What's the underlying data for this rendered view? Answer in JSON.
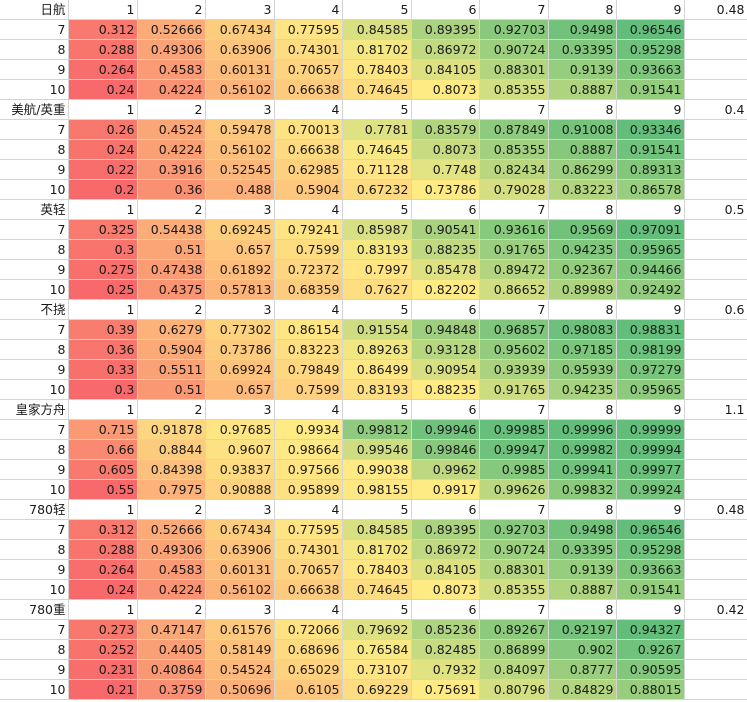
{
  "color_scale": {
    "low": "#f8696b",
    "mid": "#ffeb84",
    "high": "#63be7b"
  },
  "sections": [
    {
      "label": "日航",
      "header": [
        "1",
        "2",
        "3",
        "4",
        "5",
        "6",
        "7",
        "8",
        "9"
      ],
      "side_value": "0.48",
      "rows": [
        {
          "row": "7",
          "values": [
            "0.312",
            "0.52666",
            "0.67434",
            "0.77595",
            "0.84585",
            "0.89395",
            "0.92703",
            "0.9498",
            "0.96546"
          ]
        },
        {
          "row": "8",
          "values": [
            "0.288",
            "0.49306",
            "0.63906",
            "0.74301",
            "0.81702",
            "0.86972",
            "0.90724",
            "0.93395",
            "0.95298"
          ]
        },
        {
          "row": "9",
          "values": [
            "0.264",
            "0.4583",
            "0.60131",
            "0.70657",
            "0.78403",
            "0.84105",
            "0.88301",
            "0.9139",
            "0.93663"
          ]
        },
        {
          "row": "10",
          "values": [
            "0.24",
            "0.4224",
            "0.56102",
            "0.66638",
            "0.74645",
            "0.8073",
            "0.85355",
            "0.8887",
            "0.91541"
          ]
        }
      ]
    },
    {
      "label": "美航/英重",
      "header": [
        "1",
        "2",
        "3",
        "4",
        "5",
        "6",
        "7",
        "8",
        "9"
      ],
      "side_value": "0.4",
      "rows": [
        {
          "row": "7",
          "values": [
            "0.26",
            "0.4524",
            "0.59478",
            "0.70013",
            "0.7781",
            "0.83579",
            "0.87849",
            "0.91008",
            "0.93346"
          ]
        },
        {
          "row": "8",
          "values": [
            "0.24",
            "0.4224",
            "0.56102",
            "0.66638",
            "0.74645",
            "0.8073",
            "0.85355",
            "0.8887",
            "0.91541"
          ]
        },
        {
          "row": "9",
          "values": [
            "0.22",
            "0.3916",
            "0.52545",
            "0.62985",
            "0.71128",
            "0.7748",
            "0.82434",
            "0.86299",
            "0.89313"
          ]
        },
        {
          "row": "10",
          "values": [
            "0.2",
            "0.36",
            "0.488",
            "0.5904",
            "0.67232",
            "0.73786",
            "0.79028",
            "0.83223",
            "0.86578"
          ]
        }
      ]
    },
    {
      "label": "英轻",
      "header": [
        "1",
        "2",
        "3",
        "4",
        "5",
        "6",
        "7",
        "8",
        "9"
      ],
      "side_value": "0.5",
      "rows": [
        {
          "row": "7",
          "values": [
            "0.325",
            "0.54438",
            "0.69245",
            "0.79241",
            "0.85987",
            "0.90541",
            "0.93616",
            "0.9569",
            "0.97091"
          ]
        },
        {
          "row": "8",
          "values": [
            "0.3",
            "0.51",
            "0.657",
            "0.7599",
            "0.83193",
            "0.88235",
            "0.91765",
            "0.94235",
            "0.95965"
          ]
        },
        {
          "row": "9",
          "values": [
            "0.275",
            "0.47438",
            "0.61892",
            "0.72372",
            "0.7997",
            "0.85478",
            "0.89472",
            "0.92367",
            "0.94466"
          ]
        },
        {
          "row": "10",
          "values": [
            "0.25",
            "0.4375",
            "0.57813",
            "0.68359",
            "0.7627",
            "0.82202",
            "0.86652",
            "0.89989",
            "0.92492"
          ]
        }
      ]
    },
    {
      "label": "不挠",
      "header": [
        "1",
        "2",
        "3",
        "4",
        "5",
        "6",
        "7",
        "8",
        "9"
      ],
      "side_value": "0.6",
      "rows": [
        {
          "row": "7",
          "values": [
            "0.39",
            "0.6279",
            "0.77302",
            "0.86154",
            "0.91554",
            "0.94848",
            "0.96857",
            "0.98083",
            "0.98831"
          ]
        },
        {
          "row": "8",
          "values": [
            "0.36",
            "0.5904",
            "0.73786",
            "0.83223",
            "0.89263",
            "0.93128",
            "0.95602",
            "0.97185",
            "0.98199"
          ]
        },
        {
          "row": "9",
          "values": [
            "0.33",
            "0.5511",
            "0.69924",
            "0.79849",
            "0.86499",
            "0.90954",
            "0.93939",
            "0.95939",
            "0.97279"
          ]
        },
        {
          "row": "10",
          "values": [
            "0.3",
            "0.51",
            "0.657",
            "0.7599",
            "0.83193",
            "0.88235",
            "0.91765",
            "0.94235",
            "0.95965"
          ]
        }
      ]
    },
    {
      "label": "皇家方舟",
      "header": [
        "1",
        "2",
        "3",
        "4",
        "5",
        "6",
        "7",
        "8",
        "9"
      ],
      "side_value": "1.1",
      "rows": [
        {
          "row": "7",
          "values": [
            "0.715",
            "0.91878",
            "0.97685",
            "0.9934",
            "0.99812",
            "0.99946",
            "0.99985",
            "0.99996",
            "0.99999"
          ]
        },
        {
          "row": "8",
          "values": [
            "0.66",
            "0.8844",
            "0.9607",
            "0.98664",
            "0.99546",
            "0.99846",
            "0.99947",
            "0.99982",
            "0.99994"
          ]
        },
        {
          "row": "9",
          "values": [
            "0.605",
            "0.84398",
            "0.93837",
            "0.97566",
            "0.99038",
            "0.9962",
            "0.9985",
            "0.99941",
            "0.99977"
          ]
        },
        {
          "row": "10",
          "values": [
            "0.55",
            "0.7975",
            "0.90888",
            "0.95899",
            "0.98155",
            "0.9917",
            "0.99626",
            "0.99832",
            "0.99924"
          ]
        }
      ]
    },
    {
      "label": "780轻",
      "header": [
        "1",
        "2",
        "3",
        "4",
        "5",
        "6",
        "7",
        "8",
        "9"
      ],
      "side_value": "0.48",
      "rows": [
        {
          "row": "7",
          "values": [
            "0.312",
            "0.52666",
            "0.67434",
            "0.77595",
            "0.84585",
            "0.89395",
            "0.92703",
            "0.9498",
            "0.96546"
          ]
        },
        {
          "row": "8",
          "values": [
            "0.288",
            "0.49306",
            "0.63906",
            "0.74301",
            "0.81702",
            "0.86972",
            "0.90724",
            "0.93395",
            "0.95298"
          ]
        },
        {
          "row": "9",
          "values": [
            "0.264",
            "0.4583",
            "0.60131",
            "0.70657",
            "0.78403",
            "0.84105",
            "0.88301",
            "0.9139",
            "0.93663"
          ]
        },
        {
          "row": "10",
          "values": [
            "0.24",
            "0.4224",
            "0.56102",
            "0.66638",
            "0.74645",
            "0.8073",
            "0.85355",
            "0.8887",
            "0.91541"
          ]
        }
      ]
    },
    {
      "label": "780重",
      "header": [
        "1",
        "2",
        "3",
        "4",
        "5",
        "6",
        "7",
        "8",
        "9"
      ],
      "side_value": "0.42",
      "rows": [
        {
          "row": "7",
          "values": [
            "0.273",
            "0.47147",
            "0.61576",
            "0.72066",
            "0.79692",
            "0.85236",
            "0.89267",
            "0.92197",
            "0.94327"
          ]
        },
        {
          "row": "8",
          "values": [
            "0.252",
            "0.4405",
            "0.58149",
            "0.68696",
            "0.76584",
            "0.82485",
            "0.86899",
            "0.902",
            "0.9267"
          ]
        },
        {
          "row": "9",
          "values": [
            "0.231",
            "0.40864",
            "0.54524",
            "0.65029",
            "0.73107",
            "0.7932",
            "0.84097",
            "0.8777",
            "0.90595"
          ]
        },
        {
          "row": "10",
          "values": [
            "0.21",
            "0.3759",
            "0.50696",
            "0.6105",
            "0.69229",
            "0.75691",
            "0.80796",
            "0.84829",
            "0.88015"
          ]
        }
      ]
    }
  ]
}
